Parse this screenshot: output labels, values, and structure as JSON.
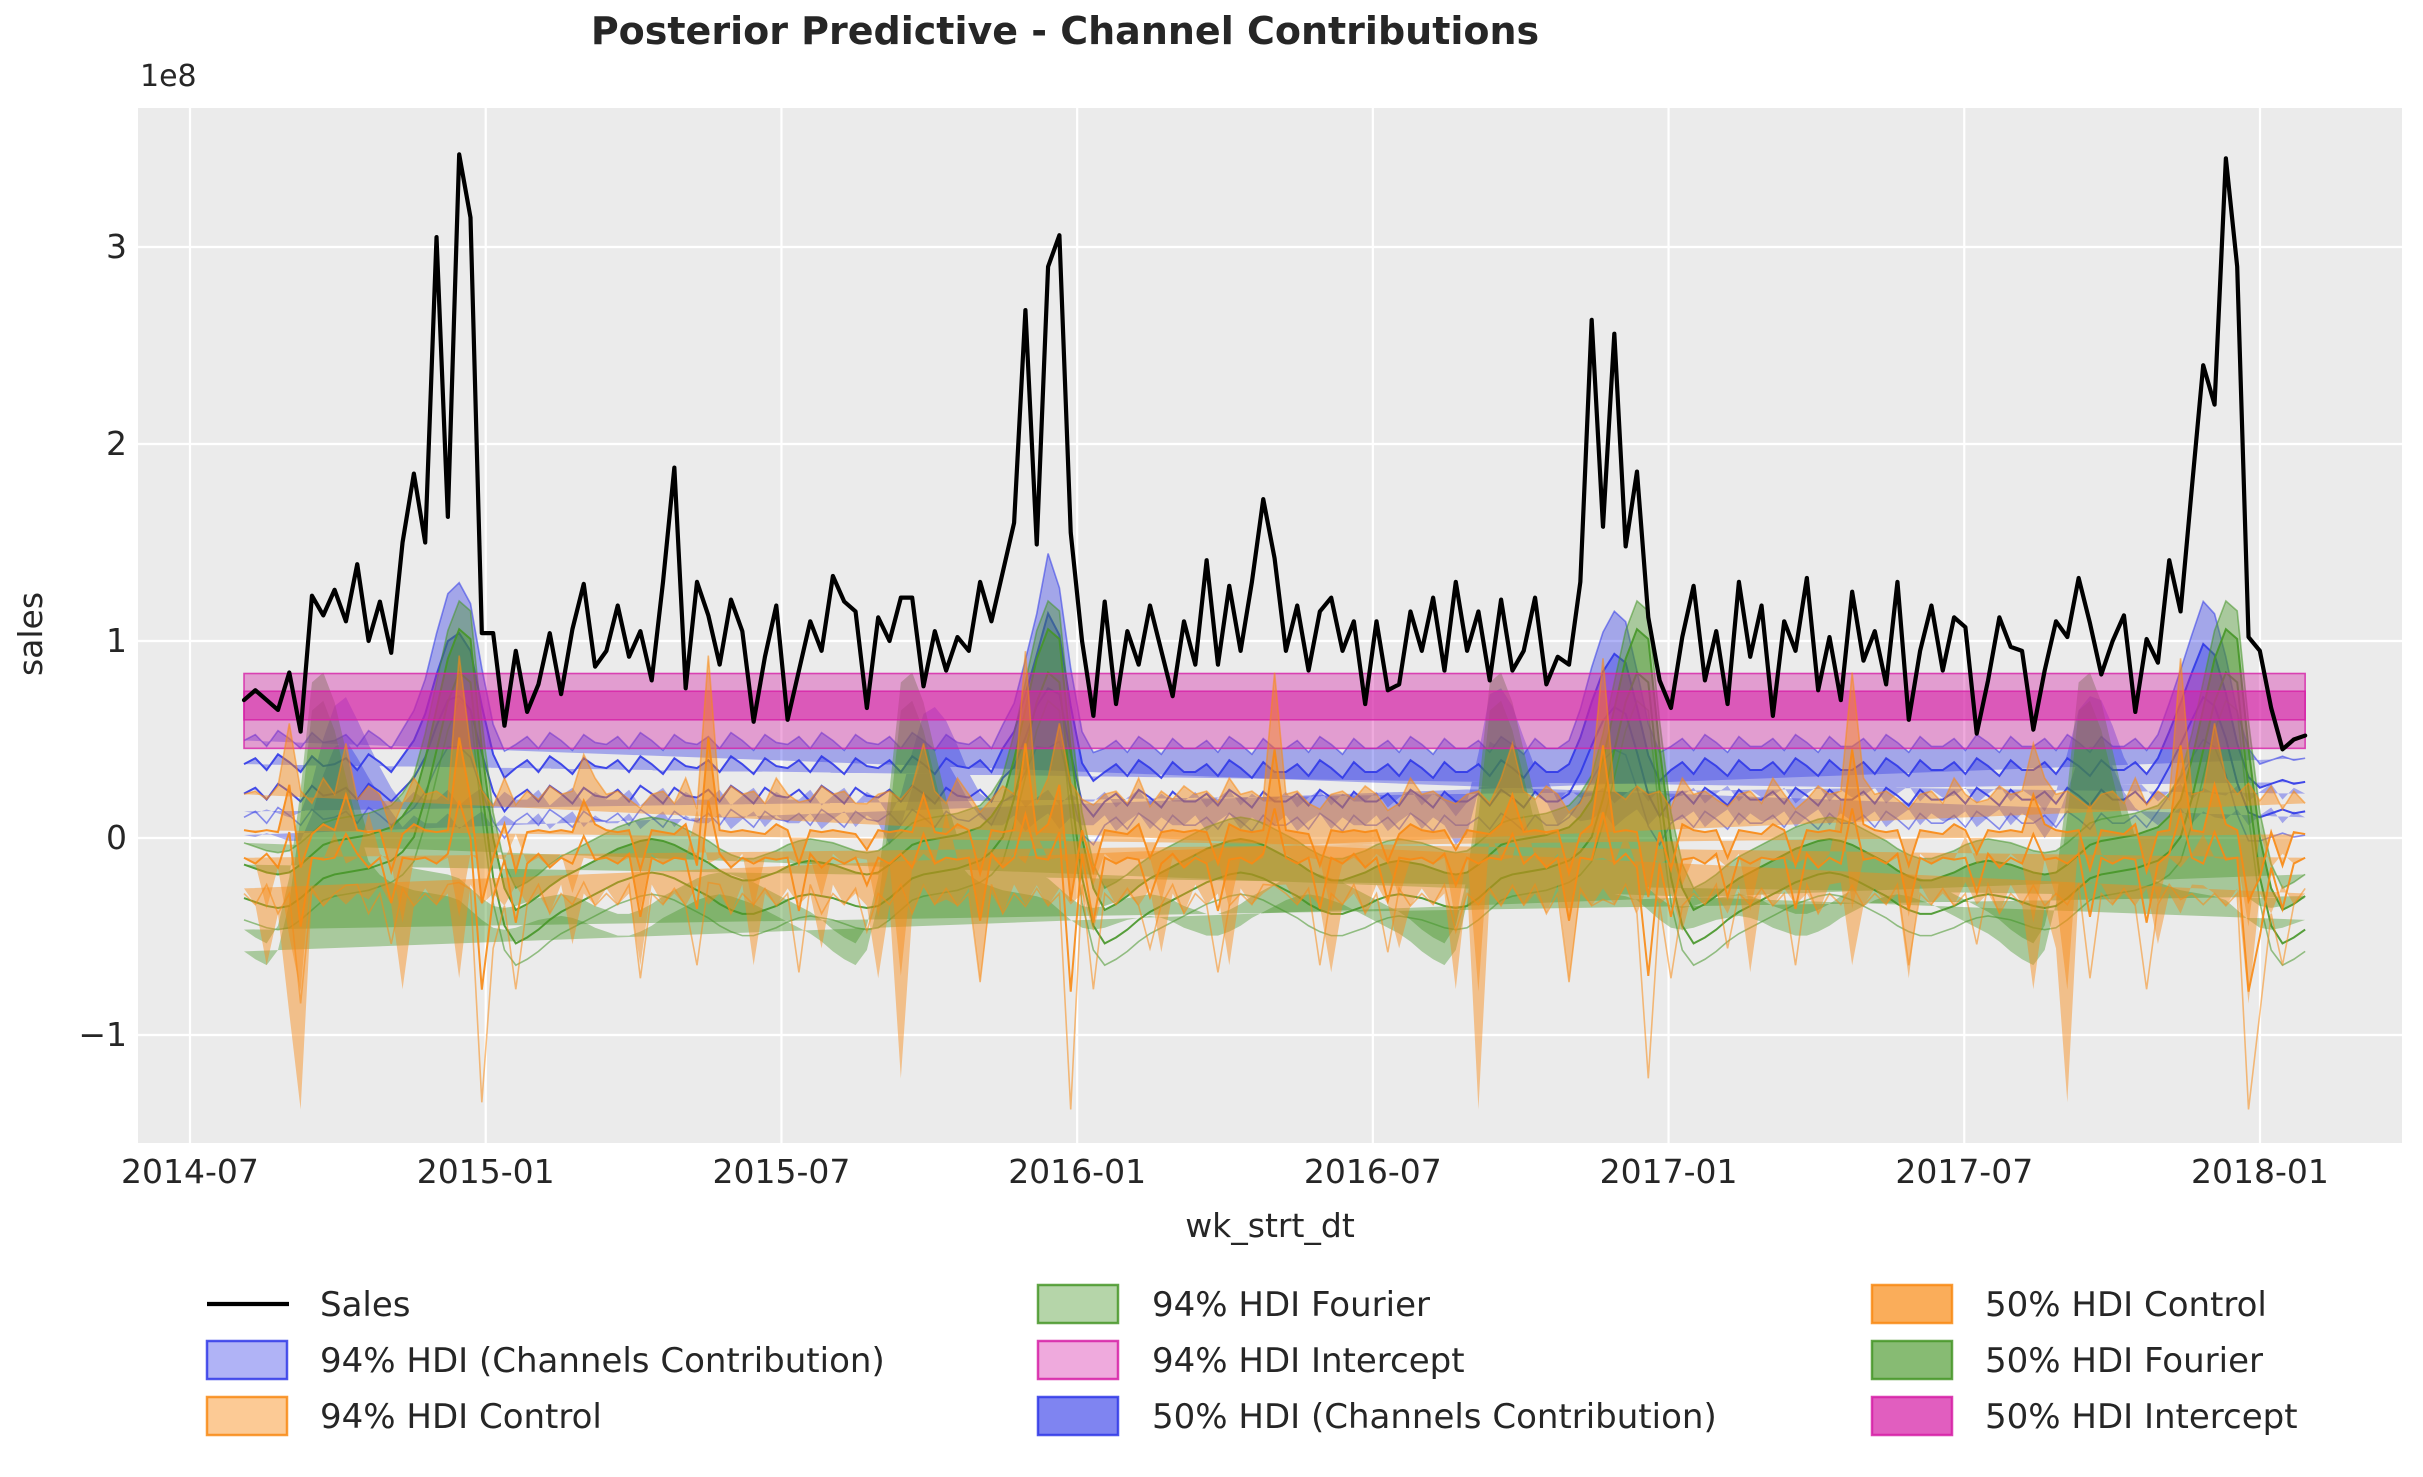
{
  "title": "Posterior Predictive - Channel Contributions",
  "axes": {
    "xlabel": "wk_strt_dt",
    "ylabel": "sales",
    "offset_text": "1e8",
    "x_tick_labels": [
      "2014-07",
      "2015-01",
      "2015-07",
      "2016-01",
      "2016-07",
      "2017-01",
      "2017-07",
      "2018-01"
    ],
    "y_tick_labels": [
      "−1",
      "0",
      "1",
      "2",
      "3"
    ],
    "y_tick_values": [
      -1,
      0,
      1,
      2,
      3
    ]
  },
  "colors": {
    "fig_bg": "#ffffff",
    "plot_bg": "#ebebeb",
    "grid": "#ffffff",
    "text": "#262626",
    "sales": "#000000",
    "channels": {
      "rgb": "48,56,232",
      "a94": 0.38,
      "a50_total": 0.62
    },
    "fourier": {
      "rgb": "70,150,40",
      "a94": 0.4,
      "a50_total": 0.65
    },
    "control": {
      "rgb": "248,138,20",
      "a94": 0.45,
      "a50_total": 0.7
    },
    "intercept": {
      "rgb": "214,32,166",
      "a94": 0.38,
      "a50_total": 0.72
    }
  },
  "legend": {
    "items": [
      {
        "label": "Sales",
        "marker": "line",
        "series": "sales",
        "level": null,
        "col": 0,
        "row": 0
      },
      {
        "label": "94% HDI (Channels Contribution)",
        "marker": "patch",
        "series": "channels",
        "level": 94,
        "col": 0,
        "row": 1
      },
      {
        "label": "94% HDI Control",
        "marker": "patch",
        "series": "control",
        "level": 94,
        "col": 0,
        "row": 2
      },
      {
        "label": "94% HDI Fourier",
        "marker": "patch",
        "series": "fourier",
        "level": 94,
        "col": 1,
        "row": 0
      },
      {
        "label": "94% HDI Intercept",
        "marker": "patch",
        "series": "intercept",
        "level": 94,
        "col": 1,
        "row": 1
      },
      {
        "label": "50% HDI (Channels Contribution)",
        "marker": "patch",
        "series": "channels",
        "level": 50,
        "col": 1,
        "row": 2
      },
      {
        "label": "50% HDI Control",
        "marker": "patch",
        "series": "control",
        "level": 50,
        "col": 2,
        "row": 0
      },
      {
        "label": "50% HDI Fourier",
        "marker": "patch",
        "series": "fourier",
        "level": 50,
        "col": 2,
        "row": 1
      },
      {
        "label": "50% HDI Intercept",
        "marker": "patch",
        "series": "intercept",
        "level": 50,
        "col": 2,
        "row": 2
      }
    ]
  },
  "chart_data": {
    "type": "line+bands",
    "title": "Posterior Predictive - Channel Contributions",
    "xlabel": "wk_strt_dt",
    "ylabel": "sales",
    "y_unit": "1e8",
    "ylim": [
      -1.549,
      3.705
    ],
    "x_start_date": "2014-08-04",
    "x_step_days": 7,
    "n_points": 183,
    "sales": [
      0.7,
      0.75,
      0.7,
      0.65,
      0.84,
      0.54,
      1.23,
      1.13,
      1.26,
      1.1,
      1.39,
      1.0,
      1.2,
      0.94,
      1.5,
      1.85,
      1.5,
      3.05,
      1.63,
      3.47,
      3.15,
      1.04,
      1.04,
      0.57,
      0.95,
      0.64,
      0.78,
      1.04,
      0.73,
      1.06,
      1.29,
      0.87,
      0.95,
      1.18,
      0.92,
      1.05,
      0.8,
      1.3,
      1.88,
      0.76,
      1.3,
      1.13,
      0.88,
      1.21,
      1.05,
      0.59,
      0.92,
      1.18,
      0.6,
      0.85,
      1.1,
      0.95,
      1.33,
      1.2,
      1.15,
      0.66,
      1.12,
      1.0,
      1.22,
      1.22,
      0.77,
      1.05,
      0.85,
      1.02,
      0.95,
      1.3,
      1.1,
      1.35,
      1.6,
      2.68,
      1.49,
      2.9,
      3.06,
      1.55,
      1.0,
      0.62,
      1.2,
      0.68,
      1.05,
      0.88,
      1.18,
      0.95,
      0.72,
      1.1,
      0.88,
      1.41,
      0.88,
      1.28,
      0.95,
      1.3,
      1.72,
      1.42,
      0.95,
      1.18,
      0.85,
      1.15,
      1.22,
      0.95,
      1.1,
      0.68,
      1.1,
      0.75,
      0.78,
      1.15,
      0.95,
      1.22,
      0.85,
      1.3,
      0.95,
      1.15,
      0.8,
      1.21,
      0.85,
      0.95,
      1.22,
      0.78,
      0.92,
      0.88,
      1.3,
      2.63,
      1.58,
      2.56,
      1.48,
      1.86,
      1.12,
      0.8,
      0.66,
      1.02,
      1.28,
      0.8,
      1.05,
      0.68,
      1.3,
      0.92,
      1.18,
      0.62,
      1.1,
      0.95,
      1.32,
      0.75,
      1.02,
      0.7,
      1.25,
      0.9,
      1.05,
      0.78,
      1.3,
      0.6,
      0.95,
      1.18,
      0.85,
      1.12,
      1.07,
      0.53,
      0.8,
      1.12,
      0.97,
      0.95,
      0.55,
      0.85,
      1.1,
      1.02,
      1.32,
      1.09,
      0.83,
      1.0,
      1.13,
      0.64,
      1.01,
      0.89,
      1.41,
      1.15,
      1.78,
      2.4,
      2.2,
      3.45,
      2.9,
      1.02,
      0.95,
      0.66,
      0.45,
      0.5,
      0.52
    ],
    "bands": {
      "channels": {
        "k94": 2.6,
        "mean": [
          0.3,
          0.33,
          0.27,
          0.35,
          0.31,
          0.26,
          0.34,
          0.29,
          0.3,
          0.33,
          0.27,
          0.35,
          0.31,
          0.26,
          0.33,
          0.4,
          0.52,
          0.7,
          0.85,
          0.88,
          0.8,
          0.55,
          0.33,
          0.22,
          0.28,
          0.32,
          0.26,
          0.34,
          0.3,
          0.25,
          0.33,
          0.29,
          0.28,
          0.32,
          0.26,
          0.34,
          0.3,
          0.25,
          0.33,
          0.29,
          0.28,
          0.32,
          0.26,
          0.34,
          0.3,
          0.25,
          0.33,
          0.29,
          0.28,
          0.32,
          0.26,
          0.34,
          0.3,
          0.25,
          0.33,
          0.29,
          0.28,
          0.32,
          0.26,
          0.34,
          0.3,
          0.25,
          0.33,
          0.29,
          0.28,
          0.32,
          0.26,
          0.38,
          0.45,
          0.62,
          0.8,
          0.95,
          0.88,
          0.55,
          0.28,
          0.2,
          0.26,
          0.3,
          0.24,
          0.32,
          0.28,
          0.23,
          0.31,
          0.26,
          0.26,
          0.3,
          0.24,
          0.32,
          0.28,
          0.23,
          0.31,
          0.26,
          0.26,
          0.3,
          0.24,
          0.32,
          0.28,
          0.23,
          0.31,
          0.26,
          0.26,
          0.3,
          0.24,
          0.32,
          0.28,
          0.23,
          0.31,
          0.26,
          0.26,
          0.3,
          0.24,
          0.32,
          0.28,
          0.23,
          0.31,
          0.26,
          0.26,
          0.3,
          0.42,
          0.58,
          0.72,
          0.8,
          0.76,
          0.55,
          0.32,
          0.2,
          0.27,
          0.31,
          0.25,
          0.33,
          0.29,
          0.24,
          0.32,
          0.27,
          0.27,
          0.31,
          0.25,
          0.33,
          0.29,
          0.24,
          0.32,
          0.27,
          0.27,
          0.31,
          0.25,
          0.33,
          0.29,
          0.24,
          0.32,
          0.27,
          0.27,
          0.31,
          0.25,
          0.33,
          0.29,
          0.24,
          0.32,
          0.27,
          0.27,
          0.31,
          0.25,
          0.33,
          0.29,
          0.24,
          0.32,
          0.27,
          0.27,
          0.31,
          0.25,
          0.33,
          0.45,
          0.58,
          0.72,
          0.85,
          0.8,
          0.62,
          0.38,
          0.22,
          0.18,
          0.2,
          0.22,
          0.2,
          0.21
        ],
        "spread_base": 0.075,
        "spread_overrides": {
          "14": 0.085,
          "15": 0.095,
          "16": 0.11,
          "17": 0.13,
          "18": 0.15,
          "19": 0.16,
          "20": 0.15,
          "21": 0.12,
          "22": 0.095,
          "23": 0.085,
          "68": 0.09,
          "69": 0.11,
          "70": 0.13,
          "71": 0.19,
          "72": 0.15,
          "73": 0.12,
          "74": 0.1,
          "75": 0.09,
          "118": 0.09,
          "119": 0.11,
          "120": 0.125,
          "121": 0.135,
          "122": 0.13,
          "123": 0.115,
          "124": 0.1,
          "125": 0.09,
          "170": 0.09,
          "171": 0.105,
          "172": 0.12,
          "173": 0.135,
          "174": 0.13,
          "175": 0.115,
          "176": 0.1,
          "177": 0.09
        }
      },
      "fourier": {
        "k94": 2.3,
        "period_weeks": 52,
        "mean_wave52": [
          -0.22,
          -0.24,
          -0.26,
          -0.27,
          -0.26,
          -0.22,
          -0.17,
          -0.12,
          -0.1,
          -0.09,
          -0.08,
          -0.07,
          -0.05,
          -0.03,
          0.02,
          0.1,
          0.3,
          0.55,
          0.8,
          0.95,
          0.9,
          0.35,
          -0.1,
          -0.35,
          -0.45,
          -0.42,
          -0.38,
          -0.33,
          -0.29,
          -0.26,
          -0.23,
          -0.2,
          -0.17,
          -0.14,
          -0.12,
          -0.1,
          -0.09,
          -0.1,
          -0.12,
          -0.15,
          -0.18,
          -0.21,
          -0.25,
          -0.28,
          -0.3,
          -0.3,
          -0.28,
          -0.26,
          -0.23,
          -0.21,
          -0.2,
          -0.21
        ],
        "spread_base": 0.085,
        "spread_wave_overrides": {
          "14": 0.09,
          "15": 0.095,
          "16": 0.1,
          "17": 0.105,
          "18": 0.11,
          "19": 0.11,
          "20": 0.11,
          "21": 0.105,
          "22": 0.1,
          "23": 0.095
        }
      },
      "control": {
        "k94": 3.6,
        "mean_wave8": [
          -0.03,
          -0.05,
          -0.02,
          -0.06,
          -0.03,
          -0.05,
          -0.04,
          -0.02
        ],
        "mean_overrides": {
          "4": 0.15,
          "5": -0.3,
          "9": 0.12,
          "13": -0.25,
          "19": 0.35,
          "20": 0.1,
          "21": -0.55,
          "22": -0.2,
          "24": -0.3,
          "30": 0.1,
          "35": -0.28,
          "40": -0.25,
          "41": 0.35,
          "49": -0.25,
          "55": -0.15,
          "60": 0.12,
          "65": -0.3,
          "69": 0.3,
          "72": 0.15,
          "73": -0.55,
          "75": -0.3,
          "80": -0.2,
          "86": -0.25,
          "91": 0.3,
          "95": -0.25,
          "101": -0.22,
          "107": -0.15,
          "112": 0.12,
          "117": -0.3,
          "120": 0.3,
          "124": -0.5,
          "126": -0.28,
          "131": -0.2,
          "137": -0.25,
          "142": 0.3,
          "147": -0.25,
          "153": -0.18,
          "158": 0.12,
          "163": -0.28,
          "168": -0.3,
          "171": 0.3,
          "174": 0.15,
          "177": -0.55,
          "178": -0.35,
          "180": -0.25
        },
        "spread_wave4": [
          0.07,
          0.08,
          0.06,
          0.09
        ],
        "spread_overrides": {
          "4": 0.12,
          "5": 0.15,
          "9": 0.1,
          "13": 0.08,
          "19": 0.16,
          "20": 0.1,
          "21": 0.22,
          "22": 0.1,
          "24": 0.13,
          "30": 0.09,
          "35": 0.12,
          "40": 0.11,
          "41": 0.16,
          "49": 0.12,
          "55": 0.09,
          "60": 0.1,
          "65": 0.12,
          "69": 0.18,
          "72": 0.12,
          "73": 0.23,
          "75": 0.13,
          "80": 0.1,
          "86": 0.12,
          "91": 0.15,
          "95": 0.11,
          "101": 0.1,
          "107": 0.09,
          "112": 0.1,
          "117": 0.12,
          "120": 0.17,
          "124": 0.2,
          "126": 0.12,
          "131": 0.1,
          "137": 0.11,
          "142": 0.15,
          "147": 0.11,
          "153": 0.1,
          "158": 0.1,
          "163": 0.12,
          "168": 0.13,
          "171": 0.17,
          "174": 0.12,
          "177": 0.23,
          "178": 0.15,
          "180": 0.11
        }
      },
      "intercept": {
        "hdi94": [
          0.455,
          0.835
        ],
        "hdi50": [
          0.6,
          0.745
        ]
      }
    }
  }
}
